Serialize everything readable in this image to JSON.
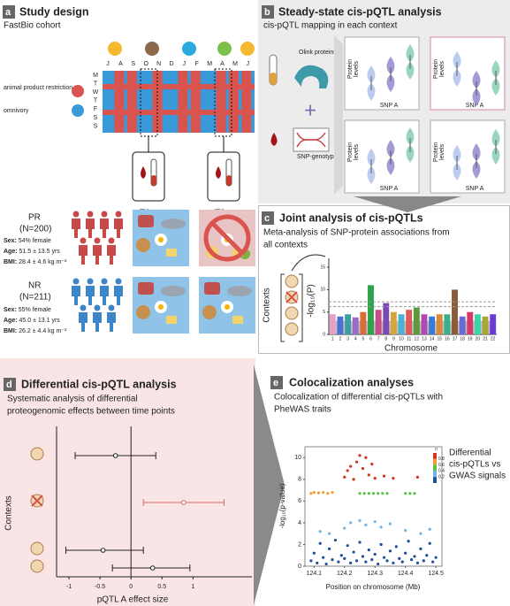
{
  "a": {
    "letter": "a",
    "title": "Study design",
    "subtitle": "FastBio cohort",
    "months": [
      "J",
      "A",
      "S",
      "O",
      "N",
      "D",
      "J",
      "F",
      "M",
      "A",
      "M",
      "J"
    ],
    "weekdays": [
      "M",
      "T",
      "W",
      "T",
      "F",
      "S",
      "S"
    ],
    "legend": [
      "animal product restriction",
      "omnivory"
    ],
    "timepoints": [
      "T1",
      "T2"
    ],
    "labels": [
      "Sex:",
      "Age:",
      "BMI:"
    ],
    "groups": [
      {
        "name": "PR",
        "n": "(N=200)",
        "sex": "54% female",
        "age": "51.5 ± 13.5 yrs",
        "bmi": "28.4 ± 4.6 kg m⁻²"
      },
      {
        "name": "NR",
        "n": "(N=211)",
        "sex": "55% female",
        "age": "45.0 ± 13.1 yrs",
        "bmi": "26.2 ± 4.4 kg m⁻²"
      }
    ]
  },
  "b": {
    "letter": "b",
    "title": "Steady-state cis-pQTL analysis",
    "subtitle": "cis-pQTL mapping in each context",
    "inputs": [
      "Olink proteins",
      "SNP-genotypes"
    ],
    "plus": "+",
    "plot_ylabel": [
      "Protein",
      "levels"
    ],
    "plot_xlabel": "SNP A"
  },
  "chart_data": [
    {
      "type": "manhattan",
      "letter": "c",
      "title": "Joint analysis of cis-pQTLs",
      "subtitle": [
        "Meta-analysis of SNP-protein associations from",
        "all contexts"
      ],
      "context_label": "Contexts",
      "ylabel": "-log₁₀(P)",
      "xlabel": "Chromosome",
      "categories": [
        "1",
        "2",
        "3",
        "4",
        "5",
        "6",
        "7",
        "8",
        "9",
        "10",
        "11",
        "12",
        "13",
        "14",
        "15",
        "16",
        "17",
        "18",
        "19",
        "20",
        "21",
        "22"
      ],
      "values": [
        4.5,
        4,
        4.5,
        3.8,
        5,
        11,
        5.5,
        7,
        5,
        4.5,
        5.5,
        6,
        4.5,
        4,
        4.5,
        4.5,
        10,
        4,
        5,
        4.5,
        4,
        4.5
      ],
      "colors": [
        "#e6a0c4",
        "#4b6fd6",
        "#3aa0a0",
        "#9a6acb",
        "#d96c3a",
        "#2ea34a",
        "#c94b8a",
        "#7c4ab0",
        "#d6a63a",
        "#4ab0d6",
        "#e05a5a",
        "#5a9a3a",
        "#b04ab0",
        "#3a7ad6",
        "#d68a3a",
        "#3ab08a",
        "#8a5a3a",
        "#6a6ad6",
        "#d63a6a",
        "#3ad6a6",
        "#a6a63a",
        "#6a3ad6"
      ],
      "ylim": [
        0,
        17
      ],
      "yticks": [
        0,
        5,
        10,
        15
      ]
    },
    {
      "type": "forest",
      "letter": "d",
      "title": "Differential cis-pQTL analysis",
      "subtitle": [
        "Systematic analysis of differential",
        "proteogenomic effects between time points"
      ],
      "ylabel": "Contexts",
      "xlabel": "pQTL A effect size",
      "values": [
        -0.25,
        0.85,
        -0.45,
        0.35
      ],
      "lower": [
        -0.9,
        0.2,
        -1.05,
        -0.3
      ],
      "upper": [
        0.4,
        1.5,
        0.2,
        0.95
      ],
      "colors": [
        "#222222",
        "#e06666",
        "#222222",
        "#222222"
      ],
      "xlim": [
        -1.2,
        1.95
      ],
      "xticks": [
        -1,
        -0.5,
        0,
        0.5,
        1
      ]
    },
    {
      "type": "scatter",
      "letter": "e",
      "title": "Colocalization analyses",
      "subtitle": [
        "Colocalization of differential cis-pQTLs with",
        "PheWAS traits"
      ],
      "ylabel": "-log₁₀(p-value)",
      "xlabel": "Position on chromosome (Mb)",
      "legend": [
        "Differential",
        "cis-pQTLs vs",
        "GWAS signals"
      ],
      "colorbar": {
        "title": "r²",
        "ticks": [
          0.8,
          0.6,
          0.4,
          0.2
        ],
        "colors": [
          "#d7301f",
          "#f39c34",
          "#5cc14b",
          "#6cb6e8",
          "#1f4e9c"
        ]
      },
      "xlim": [
        124.07,
        124.52
      ],
      "ylim": [
        0,
        11
      ],
      "xticks": [
        124.1,
        124.2,
        124.3,
        124.4,
        124.5
      ],
      "yticks": [
        0,
        2,
        4,
        6,
        8,
        10
      ],
      "series": [
        {
          "r2": 0.9,
          "x": [
            124.2,
            124.21,
            124.22,
            124.23,
            124.24,
            124.25,
            124.26,
            124.27,
            124.28,
            124.29,
            124.3,
            124.33,
            124.36,
            124.44
          ],
          "y": [
            8.2,
            8.8,
            9.2,
            8.0,
            9.6,
            10.2,
            9.0,
            10.0,
            8.4,
            9.4,
            8.1,
            8.3,
            8.1,
            8.2
          ]
        },
        {
          "r2": 0.7,
          "x": [
            124.09,
            124.1,
            124.115,
            124.13,
            124.145,
            124.16
          ],
          "y": [
            6.7,
            6.8,
            6.75,
            6.8,
            6.7,
            6.8
          ]
        },
        {
          "r2": 0.5,
          "x": [
            124.25,
            124.265,
            124.28,
            124.295,
            124.31,
            124.325,
            124.34,
            124.4,
            124.415,
            124.43
          ],
          "y": [
            6.7,
            6.7,
            6.7,
            6.7,
            6.7,
            6.7,
            6.7,
            6.7,
            6.7,
            6.7
          ]
        },
        {
          "r2": 0.3,
          "x": [
            124.12,
            124.15,
            124.2,
            124.22,
            124.25,
            124.27,
            124.3,
            124.32,
            124.35,
            124.4,
            124.45,
            124.48
          ],
          "y": [
            3.2,
            3.0,
            3.5,
            4.0,
            4.2,
            3.8,
            4.1,
            3.6,
            3.9,
            3.3,
            3.0,
            3.4
          ]
        },
        {
          "r2": 0.1,
          "x": [
            124.09,
            124.1,
            124.11,
            124.12,
            124.13,
            124.14,
            124.15,
            124.16,
            124.17,
            124.18,
            124.19,
            124.2,
            124.21,
            124.22,
            124.23,
            124.24,
            124.25,
            124.26,
            124.27,
            124.28,
            124.29,
            124.3,
            124.31,
            124.32,
            124.33,
            124.34,
            124.35,
            124.36,
            124.37,
            124.38,
            124.39,
            124.4,
            124.41,
            124.42,
            124.43,
            124.44,
            124.45,
            124.46,
            124.47,
            124.48,
            124.49,
            124.5
          ],
          "y": [
            0.5,
            1.2,
            0.3,
            2.1,
            0.8,
            0.2,
            1.6,
            0.6,
            2.4,
            0.4,
            1.0,
            0.7,
            1.9,
            0.3,
            1.3,
            0.5,
            2.2,
            0.9,
            0.4,
            1.5,
            0.6,
            1.1,
            0.2,
            2.0,
            0.8,
            0.5,
            1.4,
            0.3,
            1.8,
            0.7,
            0.4,
            1.2,
            2.3,
            0.6,
            0.9,
            0.3,
            1.6,
            0.5,
            1.0,
            2.1,
            0.4,
            0.8
          ]
        }
      ]
    }
  ]
}
